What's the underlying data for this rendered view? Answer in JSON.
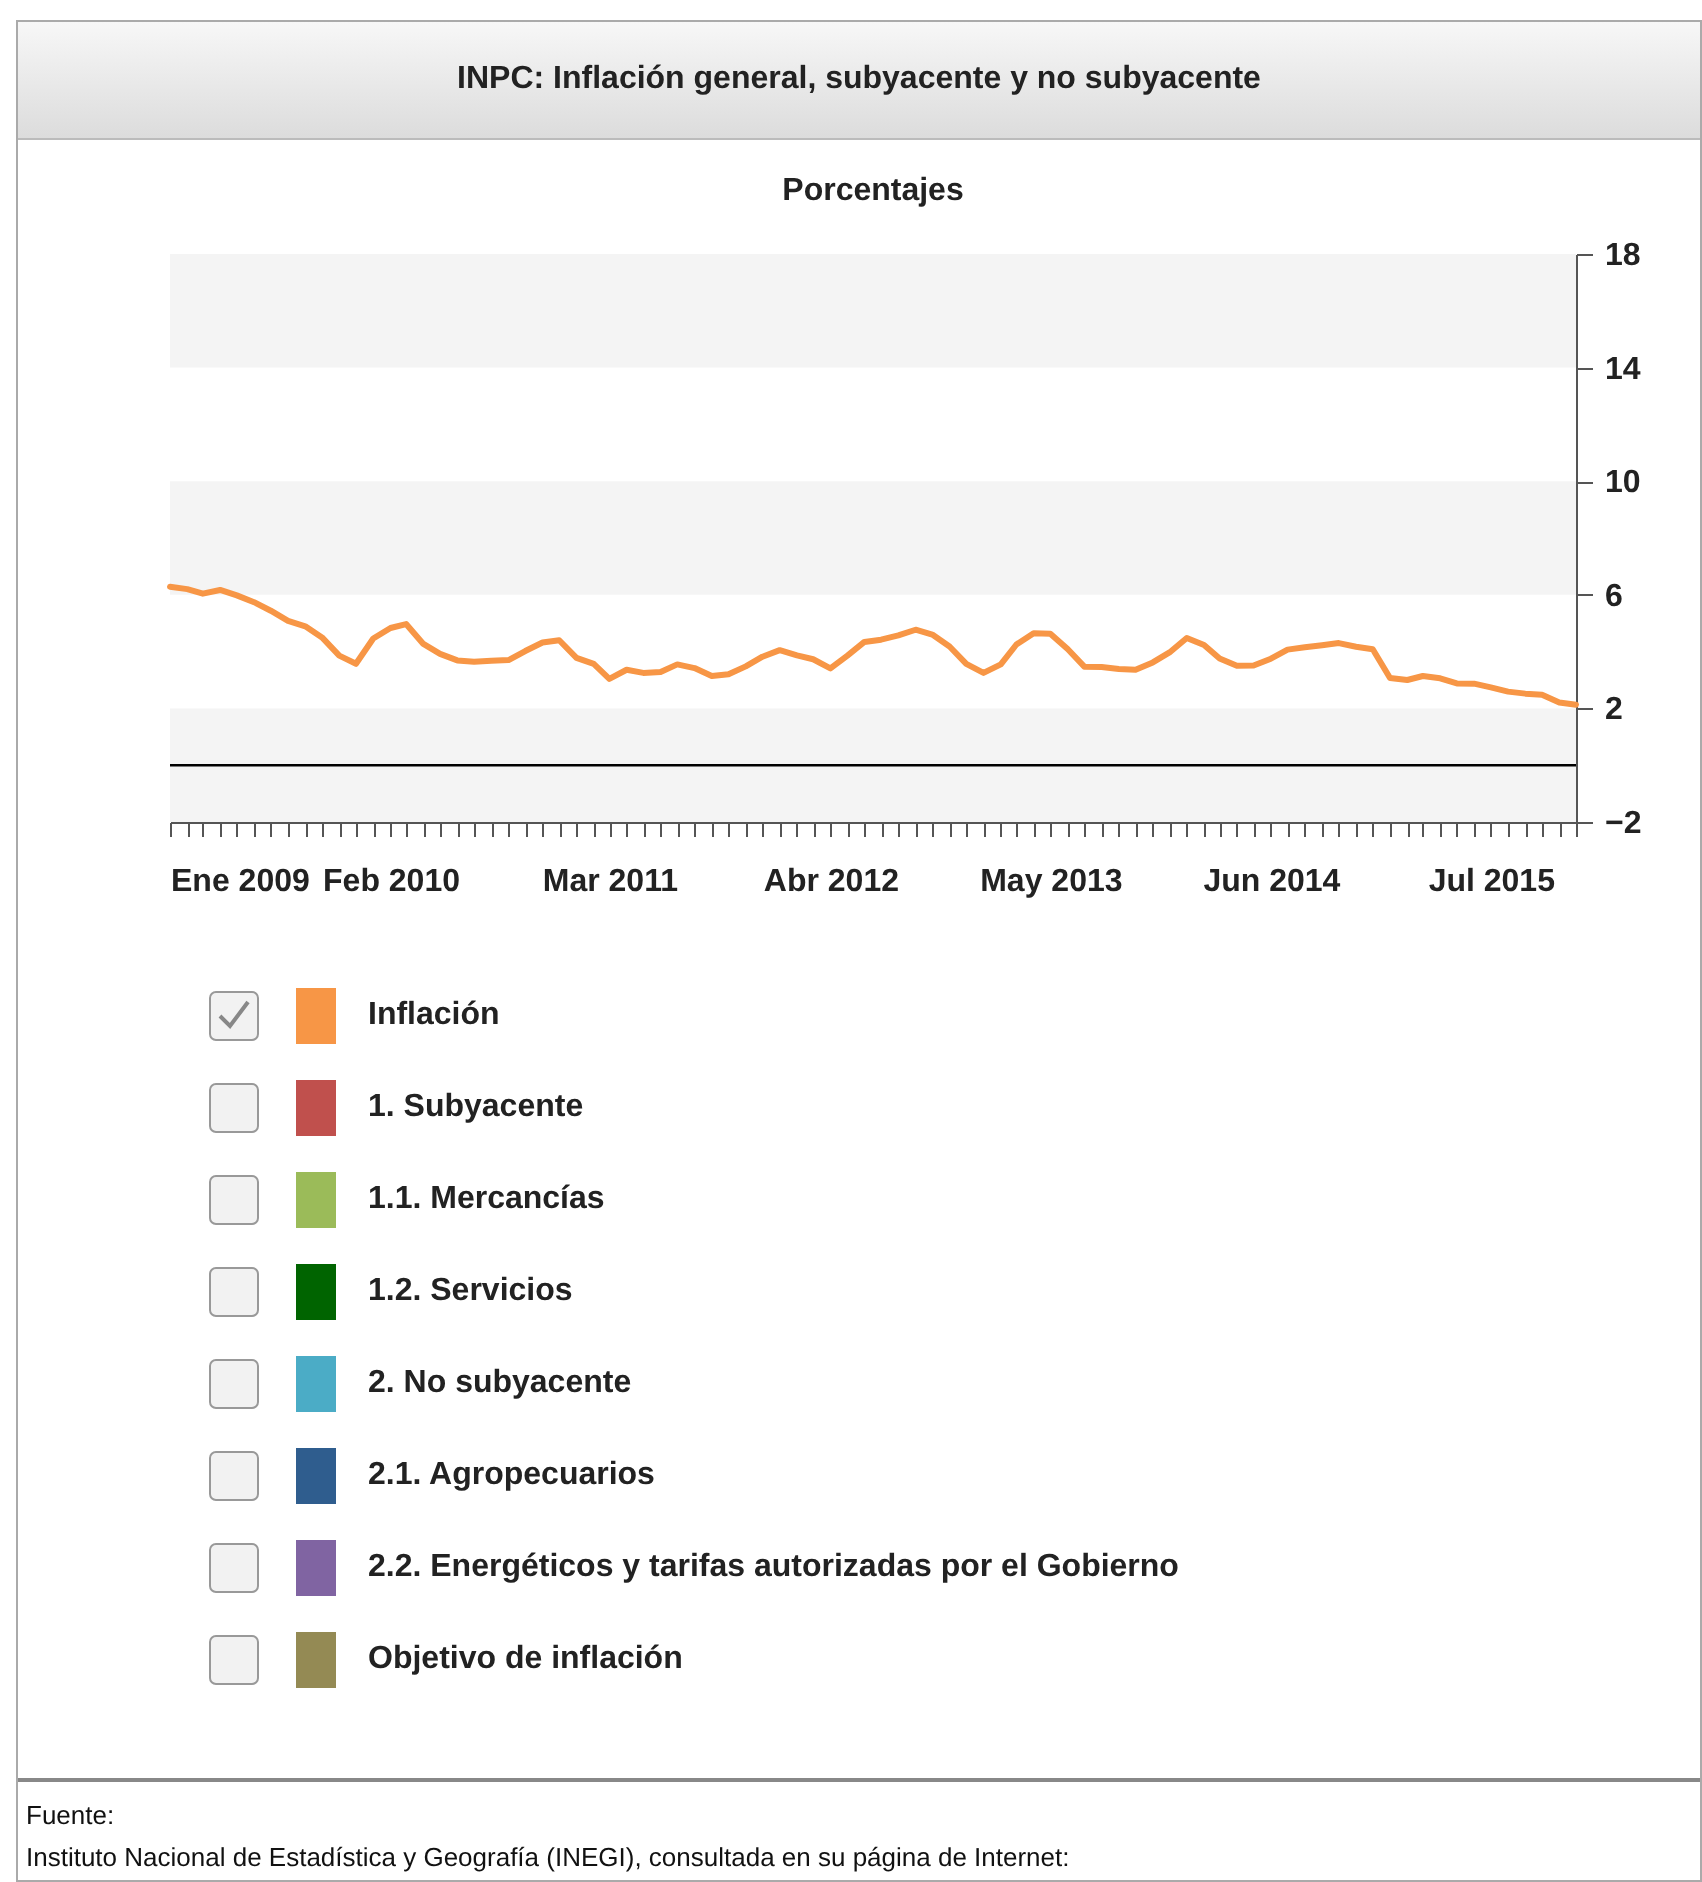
{
  "chart_data": {
    "type": "line",
    "title": "INPC: Inflación general, subyacente y no subyacente",
    "subtitle": "Porcentajes",
    "x": [
      "2009-01",
      "2009-02",
      "2009-03",
      "2009-04",
      "2009-05",
      "2009-06",
      "2009-07",
      "2009-08",
      "2009-09",
      "2009-10",
      "2009-11",
      "2009-12",
      "2010-01",
      "2010-02",
      "2010-03",
      "2010-04",
      "2010-05",
      "2010-06",
      "2010-07",
      "2010-08",
      "2010-09",
      "2010-10",
      "2010-11",
      "2010-12",
      "2011-01",
      "2011-02",
      "2011-03",
      "2011-04",
      "2011-05",
      "2011-06",
      "2011-07",
      "2011-08",
      "2011-09",
      "2011-10",
      "2011-11",
      "2011-12",
      "2012-01",
      "2012-02",
      "2012-03",
      "2012-04",
      "2012-05",
      "2012-06",
      "2012-07",
      "2012-08",
      "2012-09",
      "2012-10",
      "2012-11",
      "2012-12",
      "2013-01",
      "2013-02",
      "2013-03",
      "2013-04",
      "2013-05",
      "2013-06",
      "2013-07",
      "2013-08",
      "2013-09",
      "2013-10",
      "2013-11",
      "2013-12",
      "2014-01",
      "2014-02",
      "2014-03",
      "2014-04",
      "2014-05",
      "2014-06",
      "2014-07",
      "2014-08",
      "2014-09",
      "2014-10",
      "2014-11",
      "2014-12",
      "2015-01",
      "2015-02",
      "2015-03",
      "2015-04",
      "2015-05",
      "2015-06",
      "2015-07",
      "2015-08",
      "2015-09",
      "2015-10",
      "2015-11",
      "2015-12"
    ],
    "series": [
      {
        "name": "Inflación",
        "color": "#f79646",
        "values": [
          6.28,
          6.2,
          6.04,
          6.17,
          5.98,
          5.74,
          5.44,
          5.08,
          4.89,
          4.5,
          3.86,
          3.57,
          4.46,
          4.83,
          4.97,
          4.27,
          3.92,
          3.69,
          3.64,
          3.68,
          3.7,
          4.02,
          4.32,
          4.4,
          3.78,
          3.57,
          3.04,
          3.36,
          3.25,
          3.28,
          3.55,
          3.42,
          3.14,
          3.2,
          3.48,
          3.82,
          4.05,
          3.87,
          3.73,
          3.41,
          3.85,
          4.34,
          4.42,
          4.57,
          4.77,
          4.6,
          4.18,
          3.57,
          3.25,
          3.55,
          4.25,
          4.65,
          4.63,
          4.09,
          3.47,
          3.46,
          3.39,
          3.36,
          3.62,
          3.97,
          4.48,
          4.23,
          3.76,
          3.5,
          3.51,
          3.75,
          4.07,
          4.15,
          4.22,
          4.3,
          4.17,
          4.08,
          3.07,
          3.0,
          3.14,
          3.06,
          2.88,
          2.87,
          2.74,
          2.59,
          2.52,
          2.48,
          2.21,
          2.13
        ]
      },
      {
        "name": "1. Subyacente",
        "color": "#c0504d",
        "values": [
          null,
          null,
          null,
          null,
          null,
          null,
          null,
          null,
          null,
          null,
          null,
          null,
          null,
          null,
          null,
          null,
          null,
          null,
          null,
          null,
          null,
          null,
          null,
          null,
          null,
          null,
          null,
          null,
          null,
          null,
          null,
          null,
          null,
          null,
          null,
          null,
          null,
          null,
          null,
          null,
          null,
          null,
          null,
          null,
          null,
          null,
          null,
          null,
          null,
          null,
          null,
          null,
          null,
          null,
          null,
          null,
          null,
          null,
          null,
          null,
          null,
          null,
          null,
          null,
          null,
          null,
          null,
          null,
          null,
          null,
          null,
          null,
          null,
          null,
          null,
          null,
          null,
          null,
          null,
          null,
          null,
          null,
          null,
          null
        ]
      },
      {
        "name": "1.1. Mercancías",
        "color": "#9bbb59",
        "values": [
          null,
          null,
          null,
          null,
          null,
          null,
          null,
          null,
          null,
          null,
          null,
          null,
          null,
          null,
          null,
          null,
          null,
          null,
          null,
          null,
          null,
          null,
          null,
          null,
          null,
          null,
          null,
          null,
          null,
          null,
          null,
          null,
          null,
          null,
          null,
          null,
          null,
          null,
          null,
          null,
          null,
          null,
          null,
          null,
          null,
          null,
          null,
          null,
          null,
          null,
          null,
          null,
          null,
          null,
          null,
          null,
          null,
          null,
          null,
          null,
          null,
          null,
          null,
          null,
          null,
          null,
          null,
          null,
          null,
          null,
          null,
          null,
          null,
          null,
          null,
          null,
          null,
          null,
          null,
          null,
          null,
          null,
          null,
          null
        ]
      },
      {
        "name": "1.2. Servicios",
        "color": "#006400",
        "values": [
          null,
          null,
          null,
          null,
          null,
          null,
          null,
          null,
          null,
          null,
          null,
          null,
          null,
          null,
          null,
          null,
          null,
          null,
          null,
          null,
          null,
          null,
          null,
          null,
          null,
          null,
          null,
          null,
          null,
          null,
          null,
          null,
          null,
          null,
          null,
          null,
          null,
          null,
          null,
          null,
          null,
          null,
          null,
          null,
          null,
          null,
          null,
          null,
          null,
          null,
          null,
          null,
          null,
          null,
          null,
          null,
          null,
          null,
          null,
          null,
          null,
          null,
          null,
          null,
          null,
          null,
          null,
          null,
          null,
          null,
          null,
          null,
          null,
          null,
          null,
          null,
          null,
          null,
          null,
          null,
          null,
          null,
          null,
          null
        ]
      },
      {
        "name": "2. No subyacente",
        "color": "#4bacc6",
        "values": [
          null,
          null,
          null,
          null,
          null,
          null,
          null,
          null,
          null,
          null,
          null,
          null,
          null,
          null,
          null,
          null,
          null,
          null,
          null,
          null,
          null,
          null,
          null,
          null,
          null,
          null,
          null,
          null,
          null,
          null,
          null,
          null,
          null,
          null,
          null,
          null,
          null,
          null,
          null,
          null,
          null,
          null,
          null,
          null,
          null,
          null,
          null,
          null,
          null,
          null,
          null,
          null,
          null,
          null,
          null,
          null,
          null,
          null,
          null,
          null,
          null,
          null,
          null,
          null,
          null,
          null,
          null,
          null,
          null,
          null,
          null,
          null,
          null,
          null,
          null,
          null,
          null,
          null,
          null,
          null,
          null,
          null,
          null,
          null
        ]
      },
      {
        "name": "2.1. Agropecuarios",
        "color": "#2f5d8e",
        "values": [
          null,
          null,
          null,
          null,
          null,
          null,
          null,
          null,
          null,
          null,
          null,
          null,
          null,
          null,
          null,
          null,
          null,
          null,
          null,
          null,
          null,
          null,
          null,
          null,
          null,
          null,
          null,
          null,
          null,
          null,
          null,
          null,
          null,
          null,
          null,
          null,
          null,
          null,
          null,
          null,
          null,
          null,
          null,
          null,
          null,
          null,
          null,
          null,
          null,
          null,
          null,
          null,
          null,
          null,
          null,
          null,
          null,
          null,
          null,
          null,
          null,
          null,
          null,
          null,
          null,
          null,
          null,
          null,
          null,
          null,
          null,
          null,
          null,
          null,
          null,
          null,
          null,
          null,
          null,
          null,
          null,
          null,
          null,
          null
        ]
      },
      {
        "name": "2.2. Energéticos y tarifas autorizadas por el Gobierno",
        "color": "#8064a2",
        "values": [
          null,
          null,
          null,
          null,
          null,
          null,
          null,
          null,
          null,
          null,
          null,
          null,
          null,
          null,
          null,
          null,
          null,
          null,
          null,
          null,
          null,
          null,
          null,
          null,
          null,
          null,
          null,
          null,
          null,
          null,
          null,
          null,
          null,
          null,
          null,
          null,
          null,
          null,
          null,
          null,
          null,
          null,
          null,
          null,
          null,
          null,
          null,
          null,
          null,
          null,
          null,
          null,
          null,
          null,
          null,
          null,
          null,
          null,
          null,
          null,
          null,
          null,
          null,
          null,
          null,
          null,
          null,
          null,
          null,
          null,
          null,
          null,
          null,
          null,
          null,
          null,
          null,
          null,
          null,
          null,
          null,
          null,
          null,
          null
        ]
      },
      {
        "name": "Objetivo de inflación",
        "color": "#948a54",
        "values": [
          null,
          null,
          null,
          null,
          null,
          null,
          null,
          null,
          null,
          null,
          null,
          null,
          null,
          null,
          null,
          null,
          null,
          null,
          null,
          null,
          null,
          null,
          null,
          null,
          null,
          null,
          null,
          null,
          null,
          null,
          null,
          null,
          null,
          null,
          null,
          null,
          null,
          null,
          null,
          null,
          null,
          null,
          null,
          null,
          null,
          null,
          null,
          null,
          null,
          null,
          null,
          null,
          null,
          null,
          null,
          null,
          null,
          null,
          null,
          null,
          null,
          null,
          null,
          null,
          null,
          null,
          null,
          null,
          null,
          null,
          null,
          null,
          null,
          null,
          null,
          null,
          null,
          null,
          null,
          null,
          null,
          null,
          null,
          null
        ]
      }
    ],
    "xlim": [
      "2009-01",
      "2015-12"
    ],
    "xticks": [
      {
        "value": "2009-01",
        "label": "Ene 2009"
      },
      {
        "value": "2009-02",
        "label": null
      },
      {
        "value": "2009-03",
        "label": null
      },
      {
        "value": "2009-04",
        "label": null
      },
      {
        "value": "2009-05",
        "label": null
      },
      {
        "value": "2009-06",
        "label": null
      },
      {
        "value": "2009-07",
        "label": null
      },
      {
        "value": "2009-08",
        "label": null
      },
      {
        "value": "2009-09",
        "label": null
      },
      {
        "value": "2009-10",
        "label": null
      },
      {
        "value": "2009-11",
        "label": null
      },
      {
        "value": "2009-12",
        "label": null
      },
      {
        "value": "2010-01",
        "label": null
      },
      {
        "value": "2010-02",
        "label": "Feb 2010"
      },
      {
        "value": "2010-03",
        "label": null
      },
      {
        "value": "2010-04",
        "label": null
      },
      {
        "value": "2010-05",
        "label": null
      },
      {
        "value": "2010-06",
        "label": null
      },
      {
        "value": "2010-07",
        "label": null
      },
      {
        "value": "2010-08",
        "label": null
      },
      {
        "value": "2010-09",
        "label": null
      },
      {
        "value": "2010-10",
        "label": null
      },
      {
        "value": "2010-11",
        "label": null
      },
      {
        "value": "2010-12",
        "label": null
      },
      {
        "value": "2011-01",
        "label": null
      },
      {
        "value": "2011-02",
        "label": null
      },
      {
        "value": "2011-03",
        "label": "Mar 2011"
      },
      {
        "value": "2011-04",
        "label": null
      },
      {
        "value": "2011-05",
        "label": null
      },
      {
        "value": "2011-06",
        "label": null
      },
      {
        "value": "2011-07",
        "label": null
      },
      {
        "value": "2011-08",
        "label": null
      },
      {
        "value": "2011-09",
        "label": null
      },
      {
        "value": "2011-10",
        "label": null
      },
      {
        "value": "2011-11",
        "label": null
      },
      {
        "value": "2011-12",
        "label": null
      },
      {
        "value": "2012-01",
        "label": null
      },
      {
        "value": "2012-02",
        "label": null
      },
      {
        "value": "2012-03",
        "label": null
      },
      {
        "value": "2012-04",
        "label": "Abr 2012"
      },
      {
        "value": "2012-05",
        "label": null
      },
      {
        "value": "2012-06",
        "label": null
      },
      {
        "value": "2012-07",
        "label": null
      },
      {
        "value": "2012-08",
        "label": null
      },
      {
        "value": "2012-09",
        "label": null
      },
      {
        "value": "2012-10",
        "label": null
      },
      {
        "value": "2012-11",
        "label": null
      },
      {
        "value": "2012-12",
        "label": null
      },
      {
        "value": "2013-01",
        "label": null
      },
      {
        "value": "2013-02",
        "label": null
      },
      {
        "value": "2013-03",
        "label": null
      },
      {
        "value": "2013-04",
        "label": null
      },
      {
        "value": "2013-05",
        "label": "May 2013"
      },
      {
        "value": "2013-06",
        "label": null
      },
      {
        "value": "2013-07",
        "label": null
      },
      {
        "value": "2013-08",
        "label": null
      },
      {
        "value": "2013-09",
        "label": null
      },
      {
        "value": "2013-10",
        "label": null
      },
      {
        "value": "2013-11",
        "label": null
      },
      {
        "value": "2013-12",
        "label": null
      },
      {
        "value": "2014-01",
        "label": null
      },
      {
        "value": "2014-02",
        "label": null
      },
      {
        "value": "2014-03",
        "label": null
      },
      {
        "value": "2014-04",
        "label": null
      },
      {
        "value": "2014-05",
        "label": null
      },
      {
        "value": "2014-06",
        "label": "Jun 2014"
      },
      {
        "value": "2014-07",
        "label": null
      },
      {
        "value": "2014-08",
        "label": null
      },
      {
        "value": "2014-09",
        "label": null
      },
      {
        "value": "2014-10",
        "label": null
      },
      {
        "value": "2014-11",
        "label": null
      },
      {
        "value": "2014-12",
        "label": null
      },
      {
        "value": "2015-01",
        "label": null
      },
      {
        "value": "2015-02",
        "label": null
      },
      {
        "value": "2015-03",
        "label": null
      },
      {
        "value": "2015-04",
        "label": null
      },
      {
        "value": "2015-05",
        "label": null
      },
      {
        "value": "2015-06",
        "label": null
      },
      {
        "value": "2015-07",
        "label": "Jul 2015"
      },
      {
        "value": "2015-08",
        "label": null
      },
      {
        "value": "2015-09",
        "label": null
      },
      {
        "value": "2015-10",
        "label": null
      },
      {
        "value": "2015-11",
        "label": null
      },
      {
        "value": "2015-12",
        "label": null
      }
    ],
    "ylim": [
      -2,
      18
    ],
    "yticks": [
      -2,
      2,
      6,
      10,
      14,
      18
    ],
    "bands": [
      {
        "axis": "y",
        "from": -2,
        "to": 2,
        "color": "#f4f4f4"
      },
      {
        "axis": "y",
        "from": 6,
        "to": 10,
        "color": "#f4f4f4"
      },
      {
        "axis": "y",
        "from": 14,
        "to": 18,
        "color": "#f4f4f4"
      }
    ],
    "legend": "bottom",
    "marker": "none",
    "line_style": "solid",
    "ref_lines": [
      {
        "axis": "y",
        "value": 0,
        "color": "#000000"
      }
    ],
    "annotations": [
      "Fuente:",
      "Instituto Nacional de Estadística y Geografía (INEGI), consultada en su página de Internet:"
    ]
  }
}
